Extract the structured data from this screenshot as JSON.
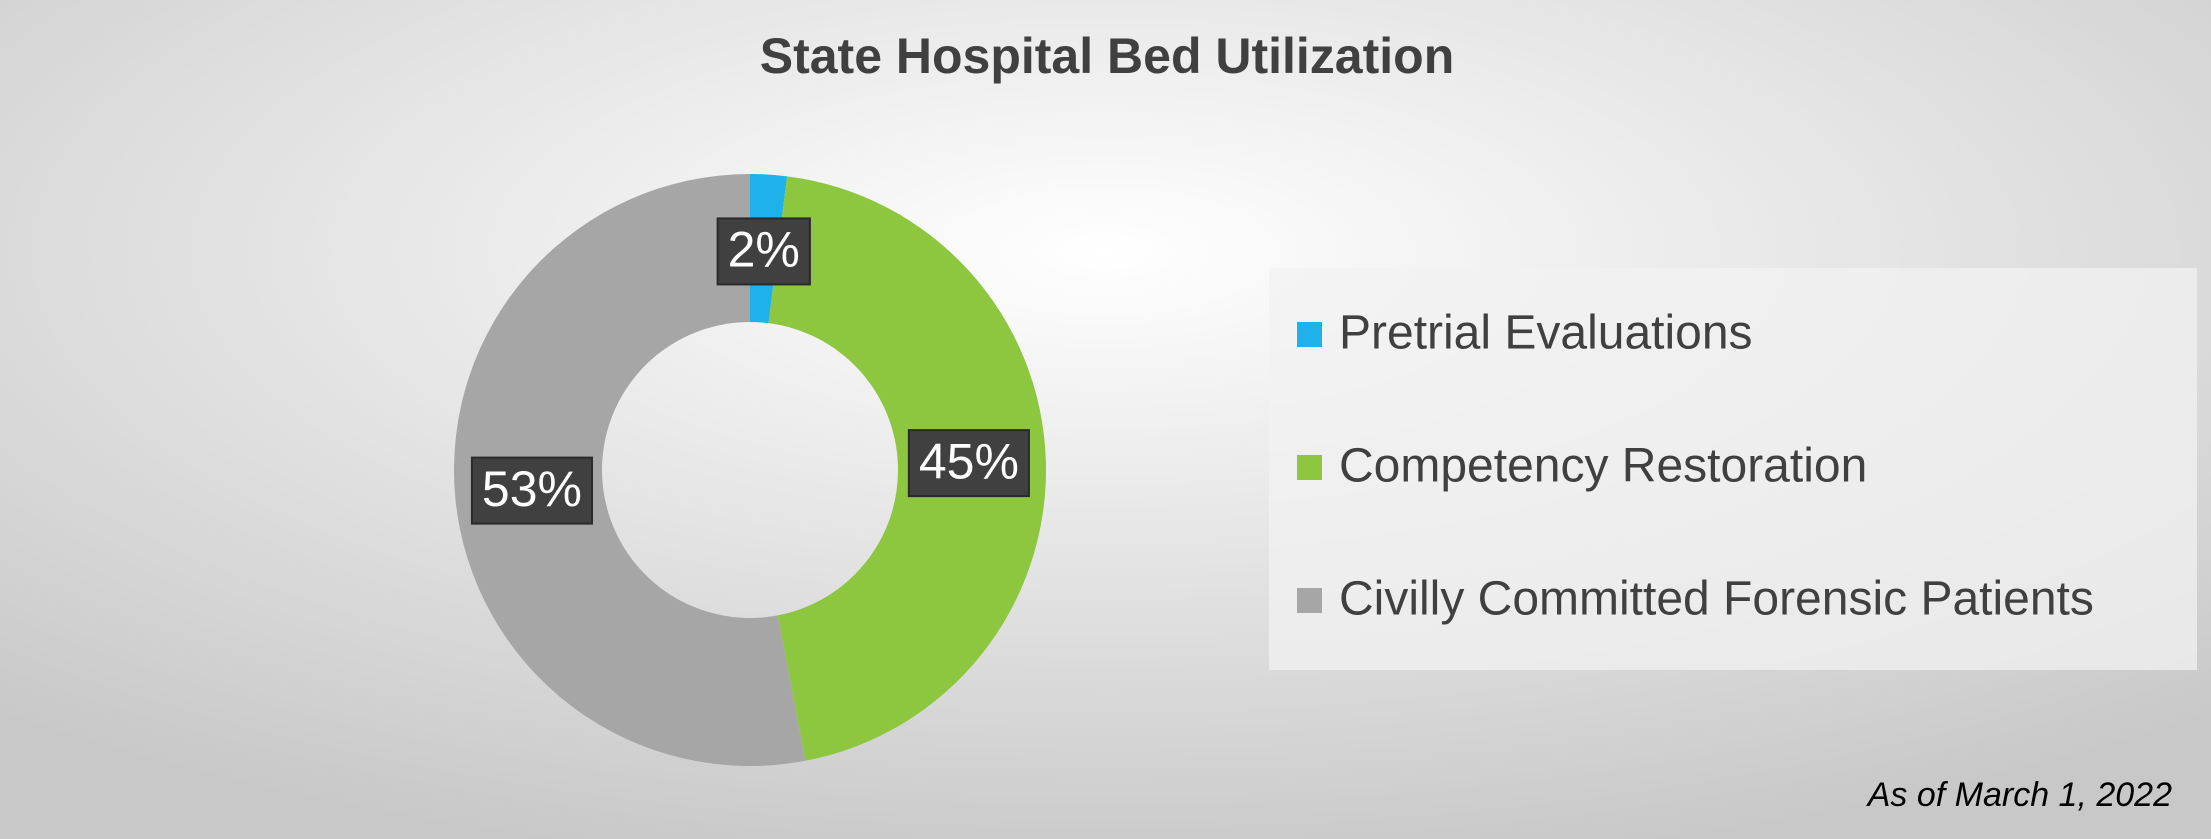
{
  "chart_data": {
    "type": "donut",
    "title": "State Hospital Bed Utilization",
    "categories": [
      "Pretrial Evaluations",
      "Competency Restoration",
      "Civilly Committed Forensic Patients"
    ],
    "values": [
      2,
      45,
      53
    ],
    "value_labels": [
      "2%",
      "45%",
      "53%"
    ],
    "colors": [
      "#1fb1ea",
      "#8dc63f",
      "#a6a6a6"
    ],
    "legend": "right",
    "note": "As of March 1, 2022"
  }
}
